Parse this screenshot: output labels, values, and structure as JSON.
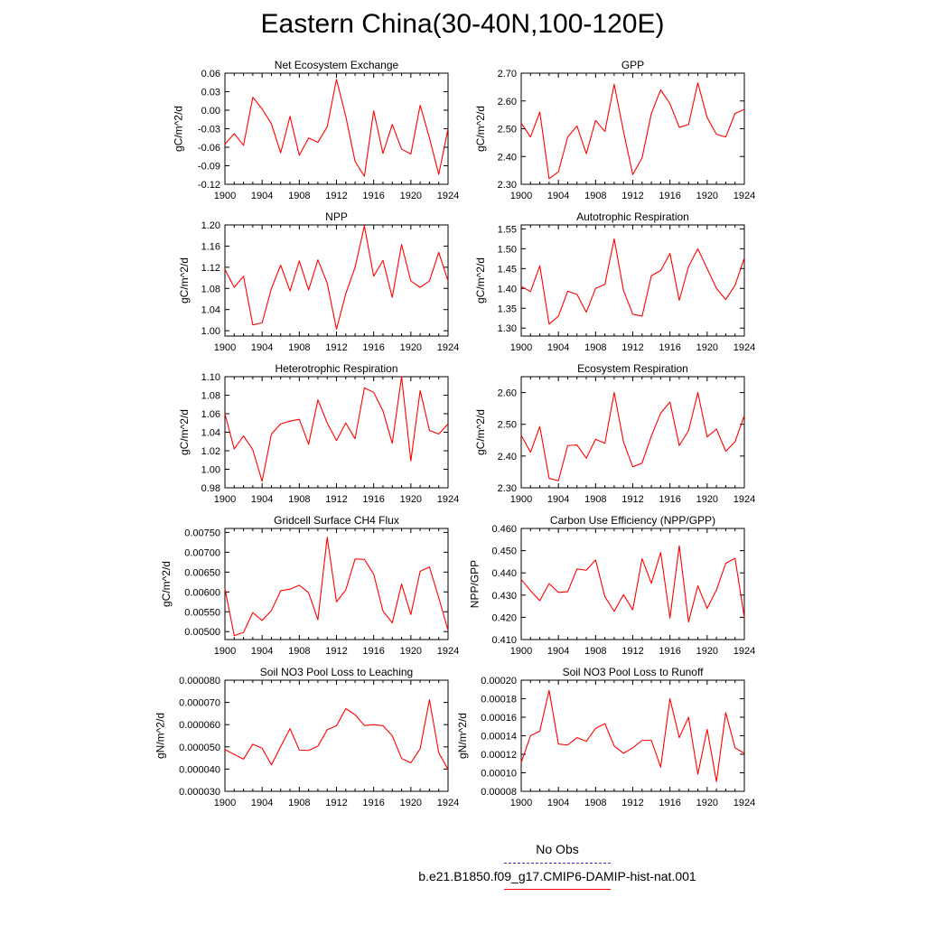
{
  "title": "Eastern China(30-40N,100-120E)",
  "legend": {
    "obs_label": "No Obs",
    "model_label": "b.e21.B1850.f09_g17.CMIP6-DAMIP-hist-nat.001",
    "obs_color": "#3333bb",
    "model_color": "#ff0000"
  },
  "chart_data": [
    {
      "type": "line",
      "title": "Net Ecosystem Exchange",
      "ylabel": "gC/m^2/d",
      "xlim": [
        1900,
        1924
      ],
      "ylim": [
        -0.12,
        0.06
      ],
      "xticks": [
        "1900",
        "1904",
        "1908",
        "1912",
        "1916",
        "1920",
        "1924"
      ],
      "yticks": [
        "-0.12",
        "-0.09",
        "-0.06",
        "-0.03",
        "0.00",
        "0.03",
        "0.06"
      ],
      "x": [
        1900,
        1901,
        1902,
        1903,
        1904,
        1905,
        1906,
        1907,
        1908,
        1909,
        1910,
        1911,
        1912,
        1913,
        1914,
        1915,
        1916,
        1917,
        1918,
        1919,
        1920,
        1921,
        1922,
        1923,
        1924
      ],
      "values": [
        -0.055,
        -0.038,
        -0.057,
        0.021,
        0.002,
        -0.022,
        -0.069,
        -0.01,
        -0.073,
        -0.045,
        -0.052,
        -0.027,
        0.05,
        -0.01,
        -0.083,
        -0.107,
        -0.001,
        -0.07,
        -0.023,
        -0.063,
        -0.071,
        0.008,
        -0.045,
        -0.104,
        -0.03
      ]
    },
    {
      "type": "line",
      "title": "GPP",
      "ylabel": "gC/m^2/d",
      "xlim": [
        1900,
        1924
      ],
      "ylim": [
        2.3,
        2.7
      ],
      "xticks": [
        "1900",
        "1904",
        "1908",
        "1912",
        "1916",
        "1920",
        "1924"
      ],
      "yticks": [
        "2.30",
        "2.40",
        "2.50",
        "2.60",
        "2.70"
      ],
      "x": [
        1900,
        1901,
        1902,
        1903,
        1904,
        1905,
        1906,
        1907,
        1908,
        1909,
        1910,
        1911,
        1912,
        1913,
        1914,
        1915,
        1916,
        1917,
        1918,
        1919,
        1920,
        1921,
        1922,
        1923,
        1924
      ],
      "values": [
        2.52,
        2.47,
        2.56,
        2.32,
        2.345,
        2.47,
        2.51,
        2.41,
        2.53,
        2.49,
        2.66,
        2.49,
        2.335,
        2.395,
        2.555,
        2.64,
        2.59,
        2.505,
        2.515,
        2.665,
        2.54,
        2.48,
        2.47,
        2.555,
        2.57
      ]
    },
    {
      "type": "line",
      "title": "NPP",
      "ylabel": "gC/m^2/d",
      "xlim": [
        1900,
        1924
      ],
      "ylim": [
        0.99,
        1.2
      ],
      "xticks": [
        "1900",
        "1904",
        "1908",
        "1912",
        "1916",
        "1920",
        "1924"
      ],
      "yticks": [
        "1.00",
        "1.04",
        "1.08",
        "1.12",
        "1.16",
        "1.20"
      ],
      "x": [
        1900,
        1901,
        1902,
        1903,
        1904,
        1905,
        1906,
        1907,
        1908,
        1909,
        1910,
        1911,
        1912,
        1913,
        1914,
        1915,
        1916,
        1917,
        1918,
        1919,
        1920,
        1921,
        1922,
        1923,
        1924
      ],
      "values": [
        1.116,
        1.082,
        1.103,
        1.011,
        1.015,
        1.08,
        1.124,
        1.075,
        1.132,
        1.077,
        1.134,
        1.09,
        1.003,
        1.07,
        1.12,
        1.198,
        1.103,
        1.133,
        1.063,
        1.163,
        1.094,
        1.082,
        1.094,
        1.148,
        1.094
      ]
    },
    {
      "type": "line",
      "title": "Autotrophic Respiration",
      "ylabel": "gC/m^2/d",
      "xlim": [
        1900,
        1924
      ],
      "ylim": [
        1.28,
        1.56
      ],
      "xticks": [
        "1900",
        "1904",
        "1908",
        "1912",
        "1916",
        "1920",
        "1924"
      ],
      "yticks": [
        "1.30",
        "1.35",
        "1.40",
        "1.45",
        "1.50",
        "1.55"
      ],
      "x": [
        1900,
        1901,
        1902,
        1903,
        1904,
        1905,
        1906,
        1907,
        1908,
        1909,
        1910,
        1911,
        1912,
        1913,
        1914,
        1915,
        1916,
        1917,
        1918,
        1919,
        1920,
        1921,
        1922,
        1923,
        1924
      ],
      "values": [
        1.405,
        1.392,
        1.457,
        1.31,
        1.33,
        1.393,
        1.385,
        1.34,
        1.4,
        1.41,
        1.525,
        1.395,
        1.335,
        1.33,
        1.432,
        1.445,
        1.488,
        1.37,
        1.455,
        1.5,
        1.45,
        1.4,
        1.372,
        1.408,
        1.477
      ]
    },
    {
      "type": "line",
      "title": "Heterotrophic Respiration",
      "ylabel": "gC/m^2/d",
      "xlim": [
        1900,
        1924
      ],
      "ylim": [
        0.98,
        1.1
      ],
      "xticks": [
        "1900",
        "1904",
        "1908",
        "1912",
        "1916",
        "1920",
        "1924"
      ],
      "yticks": [
        "0.98",
        "1.00",
        "1.02",
        "1.04",
        "1.06",
        "1.08",
        "1.10"
      ],
      "x": [
        1900,
        1901,
        1902,
        1903,
        1904,
        1905,
        1906,
        1907,
        1908,
        1909,
        1910,
        1911,
        1912,
        1913,
        1914,
        1915,
        1916,
        1917,
        1918,
        1919,
        1920,
        1921,
        1922,
        1923,
        1924
      ],
      "values": [
        1.06,
        1.022,
        1.036,
        1.021,
        0.987,
        1.038,
        1.049,
        1.052,
        1.054,
        1.027,
        1.075,
        1.05,
        1.031,
        1.05,
        1.033,
        1.088,
        1.083,
        1.063,
        1.028,
        1.1,
        1.009,
        1.085,
        1.042,
        1.038,
        1.049
      ]
    },
    {
      "type": "line",
      "title": "Ecosystem Respiration",
      "ylabel": "gC/m^2/d",
      "xlim": [
        1900,
        1924
      ],
      "ylim": [
        2.3,
        2.65
      ],
      "xticks": [
        "1900",
        "1904",
        "1908",
        "1912",
        "1916",
        "1920",
        "1924"
      ],
      "yticks": [
        "2.30",
        "2.40",
        "2.50",
        "2.60"
      ],
      "x": [
        1900,
        1901,
        1902,
        1903,
        1904,
        1905,
        1906,
        1907,
        1908,
        1909,
        1910,
        1911,
        1912,
        1913,
        1914,
        1915,
        1916,
        1917,
        1918,
        1919,
        1920,
        1921,
        1922,
        1923,
        1924
      ],
      "values": [
        2.465,
        2.412,
        2.493,
        2.33,
        2.322,
        2.433,
        2.435,
        2.393,
        2.453,
        2.44,
        2.6,
        2.445,
        2.366,
        2.378,
        2.463,
        2.535,
        2.57,
        2.433,
        2.48,
        2.6,
        2.46,
        2.485,
        2.415,
        2.445,
        2.528
      ]
    },
    {
      "type": "line",
      "title": "Gridcell Surface CH4 Flux",
      "ylabel": "gC/m^2/d",
      "xlim": [
        1900,
        1924
      ],
      "ylim": [
        0.0048,
        0.0076
      ],
      "xticks": [
        "1900",
        "1904",
        "1908",
        "1912",
        "1916",
        "1920",
        "1924"
      ],
      "yticks": [
        "0.00500",
        "0.00550",
        "0.00600",
        "0.00650",
        "0.00700",
        "0.00750"
      ],
      "x": [
        1900,
        1901,
        1902,
        1903,
        1904,
        1905,
        1906,
        1907,
        1908,
        1909,
        1910,
        1911,
        1912,
        1913,
        1914,
        1915,
        1916,
        1917,
        1918,
        1919,
        1920,
        1921,
        1922,
        1923,
        1924
      ],
      "values": [
        0.00608,
        0.0049,
        0.00498,
        0.00548,
        0.00528,
        0.00553,
        0.00603,
        0.00607,
        0.00617,
        0.00598,
        0.0053,
        0.00738,
        0.00575,
        0.00605,
        0.00683,
        0.00682,
        0.00645,
        0.00552,
        0.00522,
        0.0062,
        0.00543,
        0.00652,
        0.00663,
        0.00585,
        0.00503
      ]
    },
    {
      "type": "line",
      "title": "Carbon Use Efficiency (NPP/GPP)",
      "ylabel": "NPP/GPP",
      "xlim": [
        1900,
        1924
      ],
      "ylim": [
        0.41,
        0.46
      ],
      "xticks": [
        "1900",
        "1904",
        "1908",
        "1912",
        "1916",
        "1920",
        "1924"
      ],
      "yticks": [
        "0.410",
        "0.420",
        "0.430",
        "0.440",
        "0.450",
        "0.460"
      ],
      "x": [
        1900,
        1901,
        1902,
        1903,
        1904,
        1905,
        1906,
        1907,
        1908,
        1909,
        1910,
        1911,
        1912,
        1913,
        1914,
        1915,
        1916,
        1917,
        1918,
        1919,
        1920,
        1921,
        1922,
        1923,
        1924
      ],
      "values": [
        0.437,
        0.432,
        0.4275,
        0.4352,
        0.4312,
        0.4315,
        0.4418,
        0.4412,
        0.4458,
        0.4293,
        0.4227,
        0.4302,
        0.4234,
        0.4464,
        0.4353,
        0.4492,
        0.4197,
        0.4522,
        0.4179,
        0.4342,
        0.424,
        0.4323,
        0.4443,
        0.4466,
        0.42
      ]
    },
    {
      "type": "line",
      "title": "Soil NO3 Pool Loss to Leaching",
      "ylabel": "gN/m^2/d",
      "xlim": [
        1900,
        1924
      ],
      "ylim": [
        3e-05,
        8e-05
      ],
      "xticks": [
        "1900",
        "1904",
        "1908",
        "1912",
        "1916",
        "1920",
        "1924"
      ],
      "yticks": [
        "0.000030",
        "0.000040",
        "0.000050",
        "0.000060",
        "0.000070",
        "0.000080"
      ],
      "x": [
        1900,
        1901,
        1902,
        1903,
        1904,
        1905,
        1906,
        1907,
        1908,
        1909,
        1910,
        1911,
        1912,
        1913,
        1914,
        1915,
        1916,
        1917,
        1918,
        1919,
        1920,
        1921,
        1922,
        1923,
        1924
      ],
      "values": [
        4.88e-05,
        4.66e-05,
        4.45e-05,
        5.12e-05,
        4.94e-05,
        4.19e-05,
        5.01e-05,
        5.82e-05,
        4.86e-05,
        4.84e-05,
        5.03e-05,
        5.77e-05,
        5.95e-05,
        6.72e-05,
        6.45e-05,
        5.96e-05,
        6e-05,
        5.95e-05,
        5.5e-05,
        4.48e-05,
        4.28e-05,
        4.92e-05,
        7.12e-05,
        4.74e-05,
        3.98e-05
      ]
    },
    {
      "type": "line",
      "title": "Soil NO3 Pool Loss to Runoff",
      "ylabel": "gN/m^2/d",
      "xlim": [
        1900,
        1924
      ],
      "ylim": [
        8e-05,
        0.0002
      ],
      "xticks": [
        "1900",
        "1904",
        "1908",
        "1912",
        "1916",
        "1920",
        "1924"
      ],
      "yticks": [
        "0.00008",
        "0.00010",
        "0.00012",
        "0.00014",
        "0.00016",
        "0.00018",
        "0.00020"
      ],
      "x": [
        1900,
        1901,
        1902,
        1903,
        1904,
        1905,
        1906,
        1907,
        1908,
        1909,
        1910,
        1911,
        1912,
        1913,
        1914,
        1915,
        1916,
        1917,
        1918,
        1919,
        1920,
        1921,
        1922,
        1923,
        1924
      ],
      "values": [
        0.000111,
        0.00014,
        0.000145,
        0.000189,
        0.000131,
        0.00013,
        0.000138,
        0.000134,
        0.000148,
        0.000153,
        0.000129,
        0.000121,
        0.000127,
        0.000135,
        0.000135,
        0.000106,
        0.00018,
        0.000138,
        0.00016,
        9.85e-05,
        0.000147,
        9.05e-05,
        0.000165,
        0.000127,
        0.000121
      ]
    }
  ]
}
